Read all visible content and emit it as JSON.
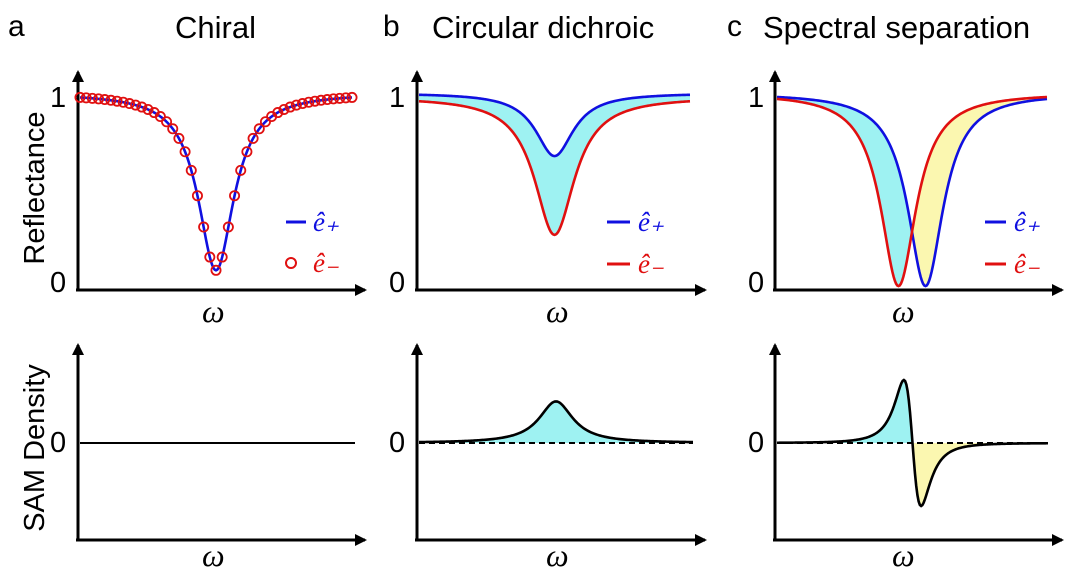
{
  "figure": {
    "panels": [
      {
        "letter": "a",
        "title": "Chiral"
      },
      {
        "letter": "b",
        "title": "Circular dichroic"
      },
      {
        "letter": "c",
        "title": "Spectral separation"
      }
    ],
    "ylabel_top": "Reflectance",
    "ylabel_bottom": "SAM Density",
    "xlabel": "ω",
    "tick_one": "1",
    "tick_zero": "0"
  },
  "legend": {
    "plus": "ê₊",
    "minus": "ê₋"
  },
  "colors": {
    "plus": "#1010e0",
    "minus": "#e01010",
    "fill_cyan": "#9ef2f2",
    "fill_yellow": "#fbf7b0",
    "axis": "#000000"
  },
  "chart_data": [
    {
      "type": "line",
      "panel": "a",
      "row": "reflectance",
      "xlabel": "ω",
      "ylabel": "Reflectance",
      "ylim": [
        0,
        1
      ],
      "series": [
        {
          "name": "ê₊",
          "style": "line",
          "color": "#1010e0",
          "lorentzian": {
            "center": 0.5,
            "width": 0.16,
            "depth": 0.9,
            "baseline": 1.0
          }
        },
        {
          "name": "ê₋",
          "style": "markers",
          "color": "#e01010",
          "lorentzian": {
            "center": 0.5,
            "width": 0.16,
            "depth": 0.9,
            "baseline": 1.0
          }
        }
      ]
    },
    {
      "type": "line",
      "panel": "b",
      "row": "reflectance",
      "xlabel": "ω",
      "ylim": [
        0,
        1
      ],
      "fill_between": "cyan",
      "series": [
        {
          "name": "ê₊",
          "color": "#1010e0",
          "lorentzian": {
            "center": 0.5,
            "width": 0.17,
            "depth": 0.32,
            "baseline": 1.0
          }
        },
        {
          "name": "ê₋",
          "color": "#e01010",
          "lorentzian": {
            "center": 0.5,
            "width": 0.18,
            "depth": 0.7,
            "baseline": 0.98
          }
        }
      ]
    },
    {
      "type": "line",
      "panel": "c",
      "row": "reflectance",
      "xlabel": "ω",
      "ylim": [
        0,
        1
      ],
      "fill_between": "cyan-yellow",
      "series": [
        {
          "name": "ê₊",
          "color": "#1010e0",
          "lorentzian": {
            "center": 0.55,
            "width": 0.16,
            "depth": 0.98,
            "baseline": 1.0
          }
        },
        {
          "name": "ê₋",
          "color": "#e01010",
          "lorentzian": {
            "center": 0.45,
            "width": 0.16,
            "depth": 0.98,
            "baseline": 1.0
          }
        }
      ]
    },
    {
      "type": "line",
      "panel": "a",
      "row": "sam",
      "xlabel": "ω",
      "ylabel": "SAM Density",
      "series": [
        {
          "shape": "zero"
        }
      ]
    },
    {
      "type": "area",
      "panel": "b",
      "row": "sam",
      "xlabel": "ω",
      "ylim": [
        -1,
        1
      ],
      "series": [
        {
          "shape": "peak",
          "center": 0.5,
          "width": 0.15,
          "amplitude": 0.33
        }
      ]
    },
    {
      "type": "area",
      "panel": "c",
      "row": "sam",
      "xlabel": "ω",
      "ylim": [
        -1,
        1
      ],
      "series": [
        {
          "shape": "dispersive",
          "center": 0.5,
          "width": 0.055,
          "amplitude": 0.5
        }
      ]
    }
  ]
}
